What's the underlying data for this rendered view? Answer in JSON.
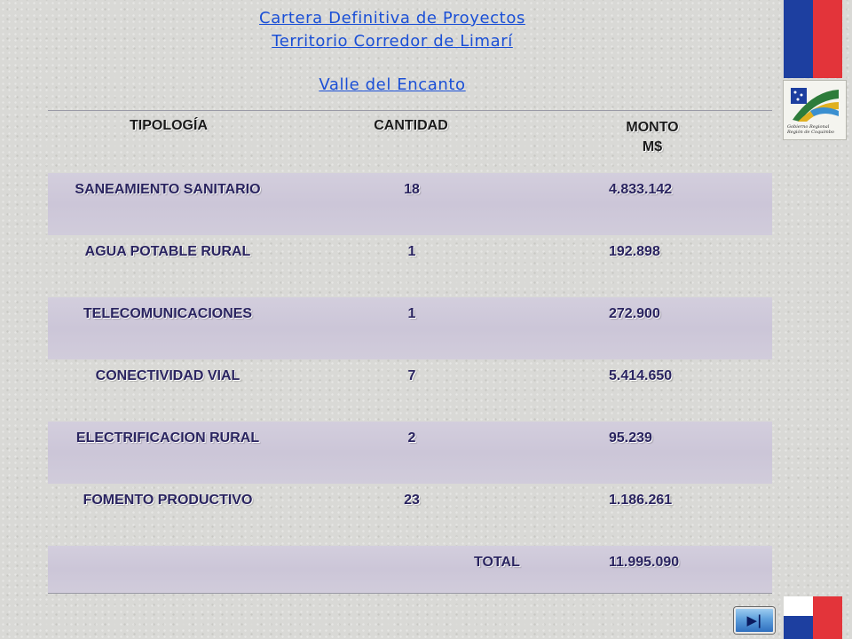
{
  "header": {
    "title_line1": "Cartera Definitiva de Proyectos",
    "title_line2": "Territorio Corredor de Limarí",
    "subtitle": "Valle del Encanto"
  },
  "logo": {
    "line1": "Gobierno Regional",
    "line2": "Región de Coquimbo"
  },
  "table": {
    "headers": {
      "tipologia": "TIPOLOGÍA",
      "cantidad": "CANTIDAD",
      "monto": "MONTO",
      "monto_unit": "M$"
    },
    "rows": [
      {
        "tipologia": "SANEAMIENTO SANITARIO",
        "cantidad": "18",
        "monto": "4.833.142"
      },
      {
        "tipologia": "AGUA POTABLE RURAL",
        "cantidad": "1",
        "monto": "192.898"
      },
      {
        "tipologia": "TELECOMUNICACIONES",
        "cantidad": "1",
        "monto": "272.900"
      },
      {
        "tipologia": "CONECTIVIDAD VIAL",
        "cantidad": "7",
        "monto": "5.414.650"
      },
      {
        "tipologia": "ELECTRIFICACION RURAL",
        "cantidad": "2",
        "monto": "95.239"
      },
      {
        "tipologia": "FOMENTO PRODUCTIVO",
        "cantidad": "23",
        "monto": "1.186.261"
      }
    ],
    "total_label": "TOTAL",
    "total_value": "11.995.090"
  },
  "nav": {
    "next_label": "▶|",
    "icon": "skip-forward-icon"
  },
  "colors": {
    "title": "#1a4fd6",
    "row_highlight": "#cfcadb",
    "text": "#2a2460",
    "flag_blue": "#1d3fa0",
    "flag_red": "#e3343a"
  }
}
